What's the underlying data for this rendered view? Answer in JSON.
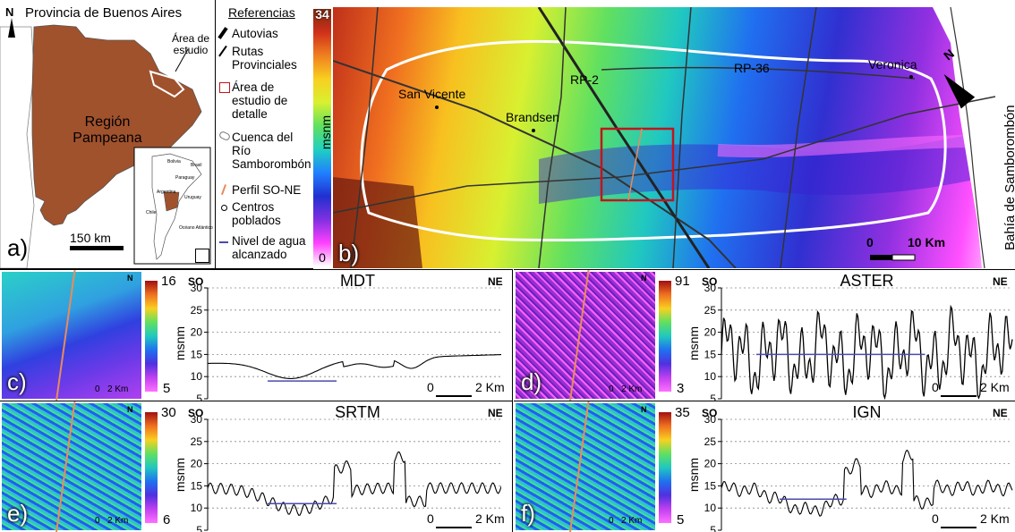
{
  "map_a": {
    "title": "Provincia de Buenos Aires",
    "north": "N",
    "study_area": "Área de estudio",
    "region": "Región Pampeana",
    "scale": "150 km",
    "panel_letter": "a)",
    "inset_labels": [
      "Bolivia",
      "Brasil",
      "Paraguay",
      "Uruguay",
      "Argentina",
      "Chile",
      "Océano Atlántico"
    ]
  },
  "legend": {
    "title": "Referencias",
    "items": [
      {
        "symbol": "autovia",
        "text": "Autovias"
      },
      {
        "symbol": "ruta",
        "text": "Rutas Provinciales"
      },
      {
        "symbol": "square",
        "text": "Área de estudio de detalle"
      },
      {
        "symbol": "basin",
        "text": "Cuenca del Río Samborombón"
      },
      {
        "symbol": "profile",
        "text": "Perfil SO-NE"
      },
      {
        "symbol": "point",
        "text": "Centros poblados"
      },
      {
        "symbol": "water",
        "text": "Nivel de agua alcanzado"
      }
    ]
  },
  "colorbar_main": {
    "max": "34",
    "min": "0",
    "unit": "msnm"
  },
  "map_b": {
    "panel_letter": "b)",
    "places": [
      "San Vicente",
      "Brandsen",
      "Veronica"
    ],
    "roads": [
      "RP-2",
      "RP-36"
    ],
    "bay": "Bahía de Samborombón",
    "north": "N",
    "scale_0": "0",
    "scale_10": "10 Km"
  },
  "profiles": [
    {
      "id": "c",
      "panel_letter": "c)",
      "title": "MDT",
      "cb_max": "16",
      "cb_min": "5",
      "left": "SO",
      "right": "NE",
      "ylabel": "msnm",
      "yticks": [
        "5",
        "10",
        "15",
        "20",
        "25",
        "30"
      ],
      "scale_0": "0",
      "scale_2": "2 Km",
      "map_scale_0": "0",
      "map_scale_2": "2 Km",
      "north": "N"
    },
    {
      "id": "d",
      "panel_letter": "d)",
      "title": "ASTER",
      "cb_max": "91",
      "cb_min": "3",
      "left": "SO",
      "right": "NE",
      "ylabel": "msnm",
      "yticks": [
        "5",
        "10",
        "15",
        "20",
        "25",
        "30"
      ],
      "scale_0": "0",
      "scale_2": "2 Km",
      "map_scale_0": "0",
      "map_scale_2": "2 Km",
      "north": "N"
    },
    {
      "id": "e",
      "panel_letter": "e)",
      "title": "SRTM",
      "cb_max": "30",
      "cb_min": "6",
      "left": "SO",
      "right": "NE",
      "ylabel": "msnm",
      "yticks": [
        "5",
        "10",
        "15",
        "20",
        "25",
        "30"
      ],
      "scale_0": "0",
      "scale_2": "2 Km",
      "map_scale_0": "0",
      "map_scale_2": "2 Km",
      "north": "N"
    },
    {
      "id": "f",
      "panel_letter": "f)",
      "title": "IGN",
      "cb_max": "35",
      "cb_min": "5",
      "left": "SO",
      "right": "NE",
      "ylabel": "msnm",
      "yticks": [
        "5",
        "10",
        "15",
        "20",
        "25",
        "30"
      ],
      "scale_0": "0",
      "scale_2": "2 Km",
      "map_scale_0": "0",
      "map_scale_2": "2 Km",
      "north": "N"
    }
  ]
}
